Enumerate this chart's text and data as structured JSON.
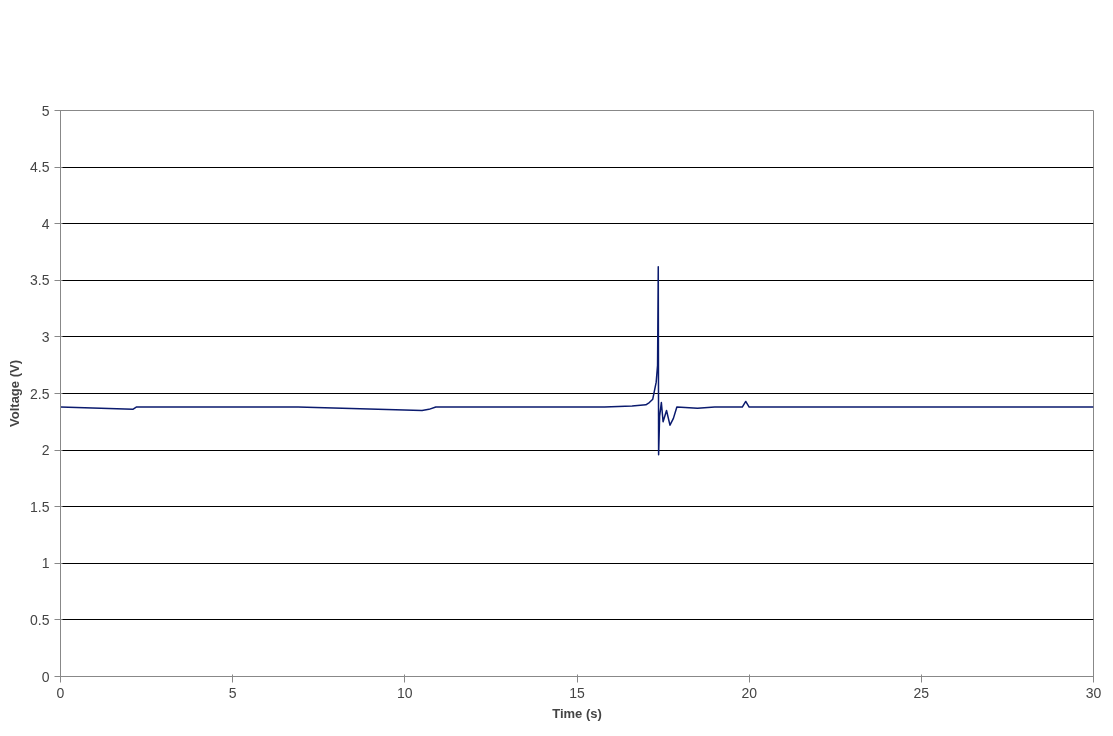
{
  "chart_data": {
    "type": "line",
    "xlabel": "Time (s)",
    "ylabel": "Voltage (V)",
    "xlim": [
      0,
      30
    ],
    "xticks": [
      0,
      5,
      10,
      15,
      20,
      25,
      30
    ],
    "ylim": [
      0,
      5
    ],
    "yticks": [
      0,
      0.5,
      1,
      1.5,
      2,
      2.5,
      3,
      3.5,
      4,
      4.5,
      5
    ],
    "grid": "y",
    "marker": "none",
    "line_style": "solid",
    "series": [
      {
        "color": "#0a1a6e",
        "x": [
          0,
          2.1,
          2.2,
          6.9,
          10.5,
          10.7,
          10.9,
          15.8,
          16.6,
          17.0,
          17.1,
          17.2,
          17.3,
          17.34,
          17.36,
          17.37,
          17.4,
          17.45,
          17.5,
          17.6,
          17.7,
          17.8,
          17.9,
          18.5,
          19.0,
          19.8,
          19.9,
          20.0,
          20.5,
          30
        ],
        "values": [
          2.38,
          2.36,
          2.38,
          2.38,
          2.35,
          2.36,
          2.38,
          2.38,
          2.39,
          2.4,
          2.42,
          2.45,
          2.6,
          2.75,
          3.62,
          1.96,
          2.3,
          2.42,
          2.25,
          2.35,
          2.22,
          2.28,
          2.38,
          2.37,
          2.38,
          2.38,
          2.43,
          2.38,
          2.38,
          2.38
        ]
      }
    ]
  }
}
